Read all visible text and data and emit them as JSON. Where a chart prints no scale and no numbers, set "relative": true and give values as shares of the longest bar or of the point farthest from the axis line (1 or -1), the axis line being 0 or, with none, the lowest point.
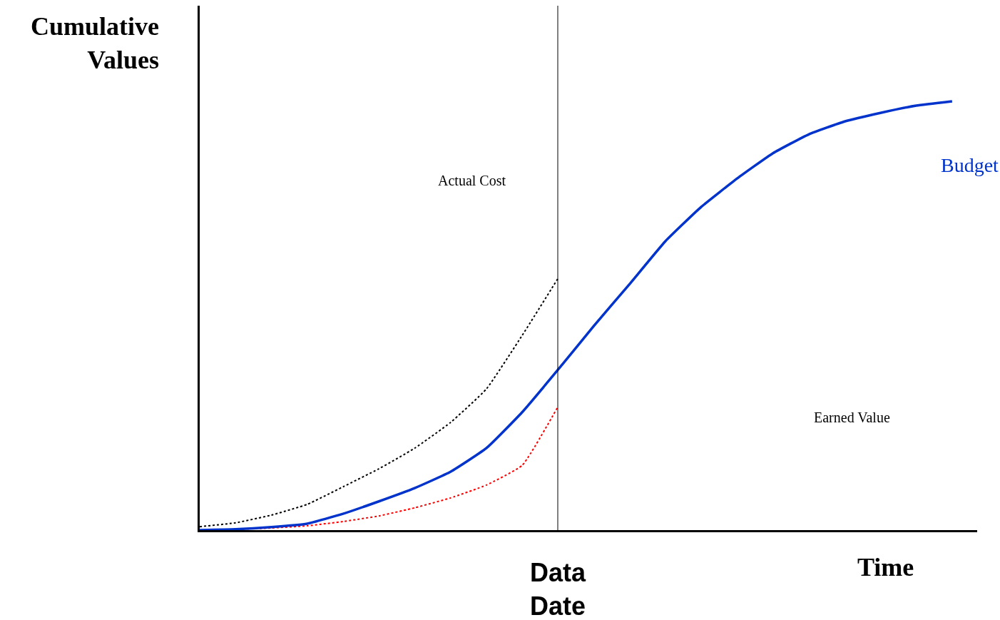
{
  "chart_data": {
    "type": "line",
    "relative": true,
    "xlabel": "Time",
    "ylabel": "Cumulative Values",
    "categories": [
      null,
      null,
      null,
      null,
      null,
      null,
      null,
      null,
      null,
      null,
      null,
      null,
      null,
      null,
      null,
      null,
      null,
      null,
      null,
      null,
      null,
      null
    ],
    "series": [
      {
        "name": "Actual Cost",
        "color": "#000000",
        "line_style": "dotted",
        "values": [
          0.008,
          0.017,
          0.035,
          0.06,
          0.101,
          0.143,
          0.191,
          0.251,
          0.329,
          0.454,
          0.587,
          null,
          null,
          null,
          null,
          null,
          null,
          null,
          null,
          null,
          null,
          null
        ]
      },
      {
        "color": "#ff0000",
        "line_style": "dotted",
        "values": [
          0,
          0.002,
          0.005,
          0.01,
          0.02,
          0.033,
          0.052,
          0.075,
          0.105,
          0.151,
          0.288,
          null,
          null,
          null,
          null,
          null,
          null,
          null,
          null,
          null,
          null,
          null
        ]
      },
      {
        "name": "Budget",
        "color": "#0033cc",
        "line_style": "solid",
        "values": [
          0,
          0.002,
          0.007,
          0.015,
          0.038,
          0.067,
          0.098,
          0.136,
          0.191,
          0.275,
          0.374,
          0.476,
          0.574,
          0.674,
          0.754,
          0.82,
          0.879,
          0.923,
          0.953,
          0.973,
          0.99,
          1.0
        ]
      }
    ],
    "annotations": [
      "Data Date",
      "Earned Value"
    ],
    "marker": "none",
    "legend": false
  }
}
